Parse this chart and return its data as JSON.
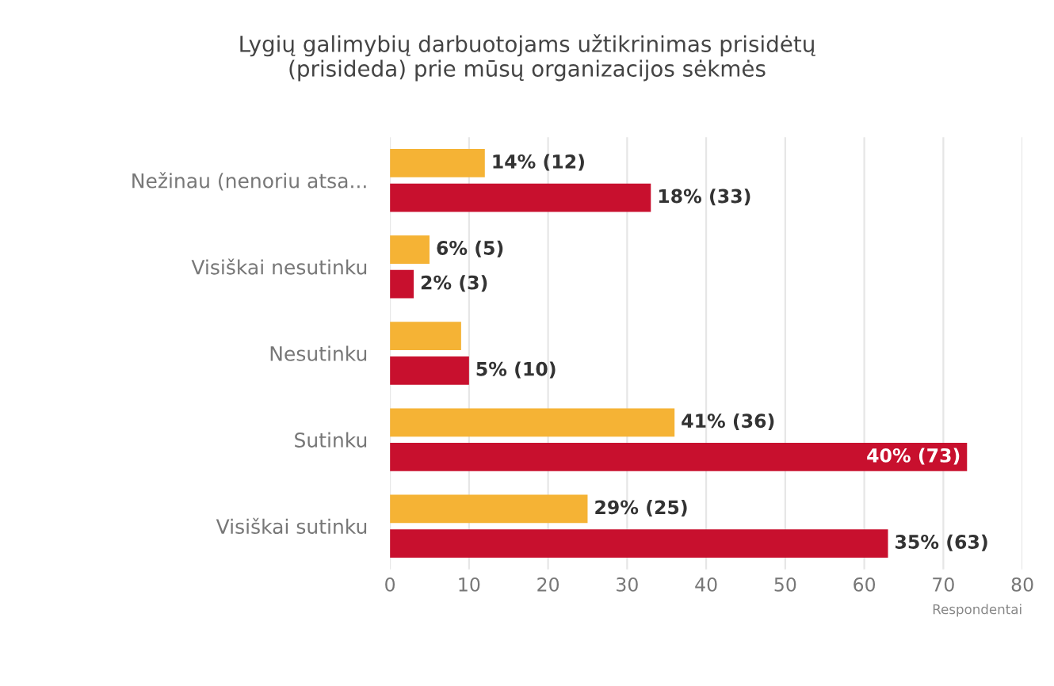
{
  "chart_data": {
    "type": "bar",
    "orientation": "horizontal",
    "title": "Lygių galimybių darbuotojams užtikrinimas prisidėtų\n(prisideda) prie mūsų organizacijos sėkmės",
    "xlabel": "Respondentai",
    "categories": [
      "Nežinau (nenoriu atsa...",
      "Visiškai nesutinku",
      "Nesutinku",
      "Sutinku",
      "Visiškai sutinku"
    ],
    "series": [
      {
        "color": "#f5b335",
        "values": [
          12,
          5,
          9,
          36,
          25
        ],
        "value_labels": [
          "14% (12)",
          "6% (5)",
          null,
          "41% (36)",
          "29% (25)"
        ]
      },
      {
        "color": "#c8102e",
        "values": [
          33,
          3,
          10,
          73,
          63
        ],
        "value_labels": [
          "18% (33)",
          "2% (3)",
          "5% (10)",
          "40% (73)",
          "35% (63)"
        ]
      }
    ],
    "xlim": [
      0,
      80
    ],
    "xticks": [
      0,
      10,
      20,
      30,
      40,
      50,
      60,
      70,
      80
    ],
    "grid": "x",
    "legend": false
  }
}
